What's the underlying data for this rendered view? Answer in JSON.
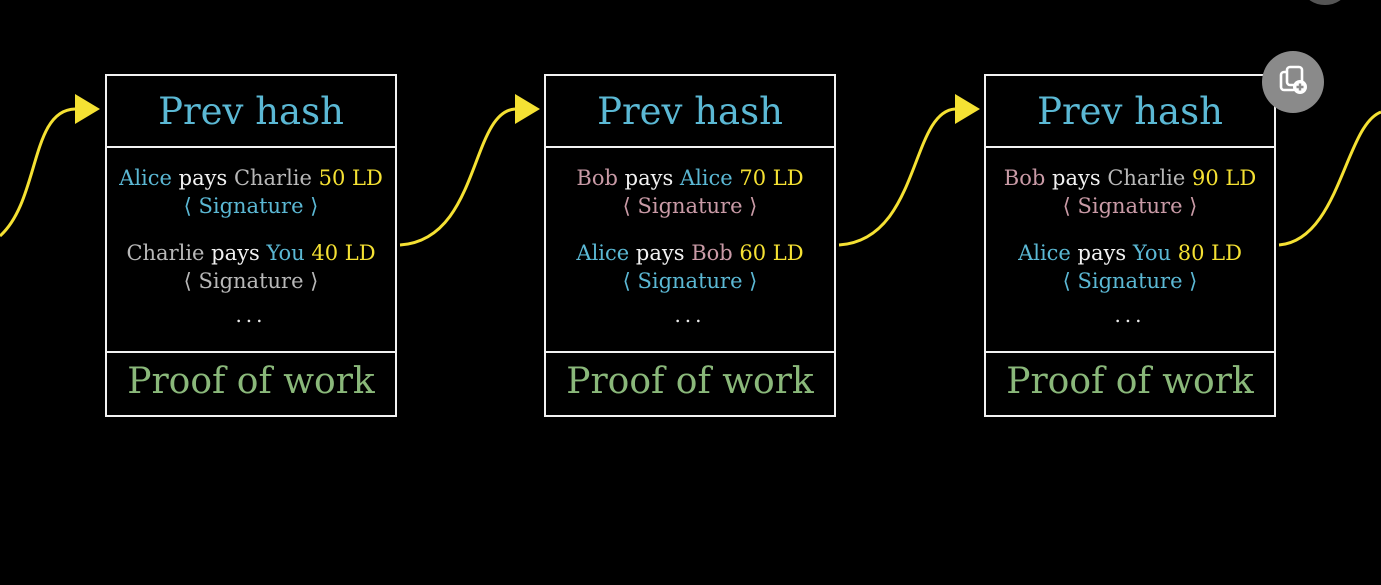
{
  "colors": {
    "alice": "#5bb8d4",
    "bob": "#c99aa6",
    "charlie": "#b8b8b8",
    "you": "#5bb8d4",
    "amount": "#f5e133",
    "arrow": "#f5e133"
  },
  "blocks": [
    {
      "header": "Prev hash",
      "footer": "Proof of work",
      "transactions": [
        {
          "from": "Alice",
          "pays": "pays",
          "to": "Charlie",
          "amount": "50 LD",
          "from_color": "alice",
          "to_color": "charlie",
          "signature": "⟨ Signature ⟩",
          "sig_color": "alice"
        },
        {
          "from": "Charlie",
          "pays": "pays",
          "to": "You",
          "amount": "40 LD",
          "from_color": "charlie",
          "to_color": "you",
          "signature": "⟨ Signature ⟩",
          "sig_color": "charlie"
        }
      ],
      "ellipsis": "..."
    },
    {
      "header": "Prev hash",
      "footer": "Proof of work",
      "transactions": [
        {
          "from": "Bob",
          "pays": "pays",
          "to": "Alice",
          "amount": "70 LD",
          "from_color": "bob",
          "to_color": "alice",
          "signature": "⟨ Signature ⟩",
          "sig_color": "bob"
        },
        {
          "from": "Alice",
          "pays": "pays",
          "to": "Bob",
          "amount": "60 LD",
          "from_color": "alice",
          "to_color": "bob",
          "signature": "⟨ Signature ⟩",
          "sig_color": "alice"
        }
      ],
      "ellipsis": "..."
    },
    {
      "header": "Prev hash",
      "footer": "Proof of work",
      "transactions": [
        {
          "from": "Bob",
          "pays": "pays",
          "to": "Charlie",
          "amount": "90 LD",
          "from_color": "bob",
          "to_color": "charlie",
          "signature": "⟨ Signature ⟩",
          "sig_color": "bob"
        },
        {
          "from": "Alice",
          "pays": "pays",
          "to": "You",
          "amount": "80 LD",
          "from_color": "alice",
          "to_color": "you",
          "signature": "⟨ Signature ⟩",
          "sig_color": "alice"
        }
      ],
      "ellipsis": "..."
    }
  ],
  "overlay": {
    "copy_icon": "copy-icon"
  }
}
